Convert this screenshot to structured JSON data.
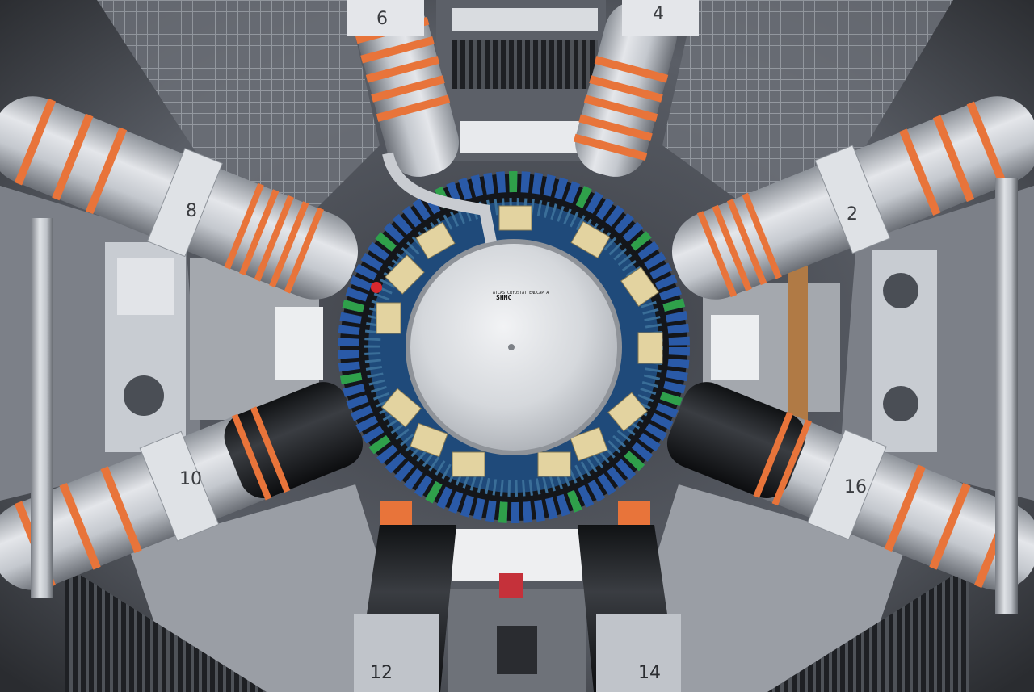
{
  "scene": {
    "disc_label": {
      "line1": "ATLAS CRYOSTAT ENDCAP A",
      "line2": "SHMC"
    },
    "coil_numbers": [
      "6",
      "4",
      "8",
      "2",
      "10",
      "16",
      "12",
      "14"
    ]
  },
  "colors": {
    "background": "#1a1c20",
    "steel": "#b8bcc2",
    "orange_bands": "#e8743a",
    "disc": "#d8dadd",
    "blue_modules": "#2a5aa8",
    "green_modules": "#2fa04a"
  }
}
